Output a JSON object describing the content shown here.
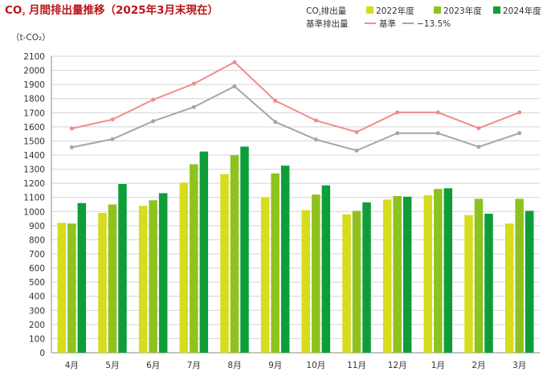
{
  "chart_data": {
    "type": "bar",
    "title": "CO₂ 月間排出量推移（2025年3月末現在）",
    "ylabel": "（t-CO₂）",
    "ylim": [
      0,
      2100
    ],
    "yticks": [
      0,
      100,
      200,
      300,
      400,
      500,
      600,
      700,
      800,
      900,
      1000,
      1100,
      1200,
      1300,
      1400,
      1500,
      1600,
      1700,
      1800,
      1900,
      2000,
      2100
    ],
    "grid": true,
    "legend_position": "top-right",
    "legend_groups": [
      {
        "label": "CO₂排出量",
        "items": [
          0,
          1,
          2
        ]
      },
      {
        "label": "基準排出量",
        "items": [
          3,
          4
        ]
      }
    ],
    "categories": [
      "4月",
      "5月",
      "6月",
      "7月",
      "8月",
      "9月",
      "10月",
      "11月",
      "12月",
      "1月",
      "2月",
      "3月"
    ],
    "series": [
      {
        "name": "2022年度",
        "kind": "bar",
        "color": "#d6dc1e",
        "values": [
          920,
          990,
          1040,
          1205,
          1265,
          1100,
          1010,
          980,
          1085,
          1115,
          975,
          915
        ]
      },
      {
        "name": "2023年度",
        "kind": "bar",
        "color": "#8ec31f",
        "values": [
          915,
          1050,
          1080,
          1335,
          1400,
          1270,
          1120,
          1005,
          1110,
          1160,
          1090,
          1090
        ]
      },
      {
        "name": "2024年度",
        "kind": "bar",
        "color": "#0f9d3a",
        "values": [
          1060,
          1195,
          1130,
          1425,
          1460,
          1325,
          1185,
          1065,
          1105,
          1165,
          985,
          1005
        ]
      },
      {
        "name": "基準",
        "kind": "line",
        "color": "#f08c8c",
        "values": [
          1588,
          1652,
          1792,
          1905,
          2058,
          1785,
          1645,
          1563,
          1702,
          1702,
          1590,
          1702
        ]
      },
      {
        "name": "−13.5%",
        "kind": "line",
        "color": "#a6a6a6",
        "values": [
          1455,
          1513,
          1640,
          1740,
          1887,
          1635,
          1510,
          1432,
          1555,
          1555,
          1458,
          1555
        ]
      }
    ]
  }
}
